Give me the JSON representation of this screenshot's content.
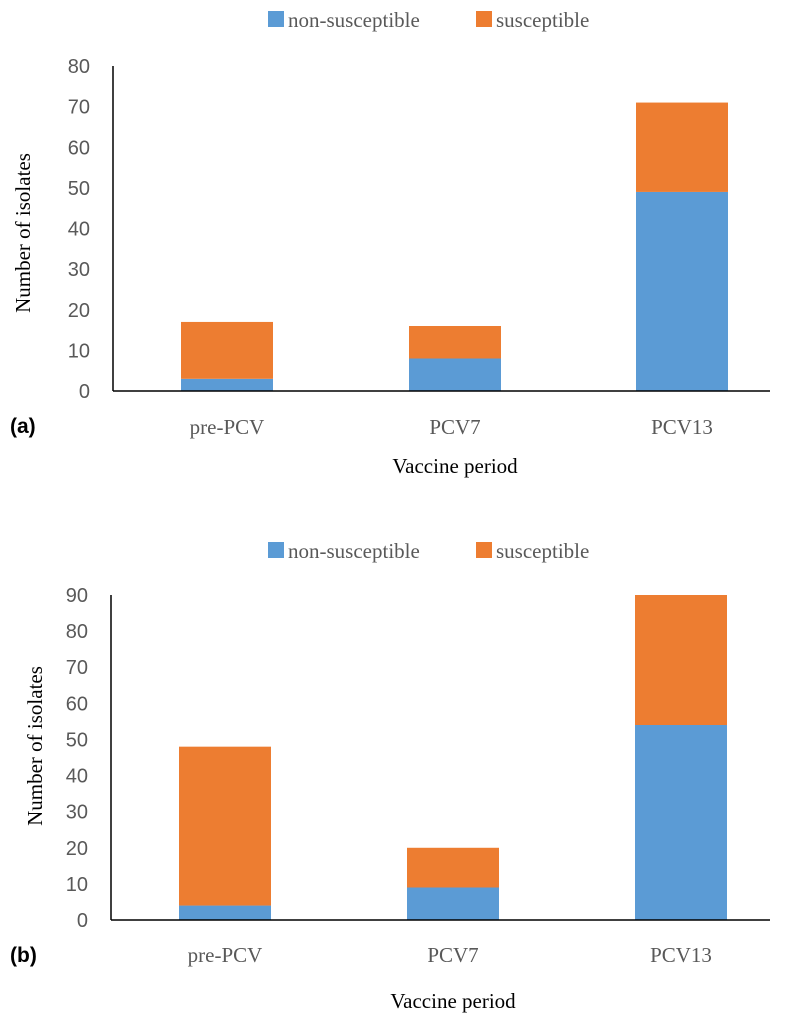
{
  "colors": {
    "non_susceptible": "#5B9BD5",
    "susceptible": "#ED7D31",
    "axis": "#000000"
  },
  "chart_data": [
    {
      "type": "bar",
      "stacked": true,
      "panel_label": "(a)",
      "categories": [
        "pre-PCV",
        "PCV7",
        "PCV13"
      ],
      "series": [
        {
          "name": "non-susceptible",
          "values": [
            3,
            8,
            49
          ]
        },
        {
          "name": "susceptible",
          "values": [
            14,
            8,
            22
          ]
        }
      ],
      "xlabel": "Vaccine period",
      "ylabel": "Number of isolates",
      "ylim": [
        0,
        80
      ],
      "yticks": [
        0,
        10,
        20,
        30,
        40,
        50,
        60,
        70,
        80
      ],
      "legend": "top-center",
      "grid": false
    },
    {
      "type": "bar",
      "stacked": true,
      "panel_label": "(b)",
      "categories": [
        "pre-PCV",
        "PCV7",
        "PCV13"
      ],
      "series": [
        {
          "name": "non-susceptible",
          "values": [
            4,
            9,
            54
          ]
        },
        {
          "name": "susceptible",
          "values": [
            44,
            11,
            36
          ]
        }
      ],
      "xlabel": "Vaccine period",
      "ylabel": "Number of isolates",
      "ylim": [
        0,
        90
      ],
      "yticks": [
        0,
        10,
        20,
        30,
        40,
        50,
        60,
        70,
        80,
        90
      ],
      "legend": "top-center",
      "grid": false
    }
  ]
}
